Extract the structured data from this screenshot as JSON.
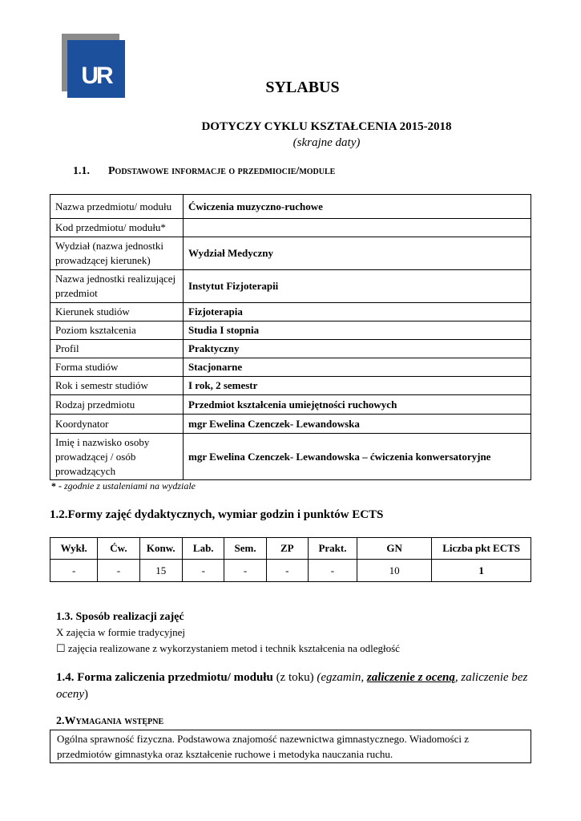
{
  "logo": {
    "text": "UR",
    "colors": {
      "blue": "#1c4f9c",
      "gray": "#8a8a8a"
    }
  },
  "title": "SYLABUS",
  "cycle": "DOTYCZY CYKLU KSZTAŁCENIA 2015-2018",
  "cycle_note": "(skrajne daty)",
  "section_1_1": {
    "num": "1.1.",
    "title": "Podstawowe informacje o przedmiocie/module"
  },
  "info_rows": [
    {
      "label": "Nazwa przedmiotu/ modułu",
      "value": "Ćwiczenia muzyczno-ruchowe"
    },
    {
      "label": "Kod przedmiotu/ modułu*",
      "value": ""
    },
    {
      "label": "Wydział (nazwa jednostki prowadzącej kierunek)",
      "value": "Wydział Medyczny"
    },
    {
      "label": "Nazwa jednostki realizującej przedmiot",
      "value": "Instytut Fizjoterapii"
    },
    {
      "label": "Kierunek studiów",
      "value": "Fizjoterapia"
    },
    {
      "label": "Poziom kształcenia",
      "value": "Studia I stopnia"
    },
    {
      "label": "Profil",
      "value": "Praktyczny"
    },
    {
      "label": "Forma studiów",
      "value": "Stacjonarne"
    },
    {
      "label": "Rok i semestr studiów",
      "value": "I rok, 2 semestr"
    },
    {
      "label": "Rodzaj przedmiotu",
      "value": "Przedmiot kształcenia umiejętności ruchowych"
    },
    {
      "label": "Koordynator",
      "value": "mgr Ewelina Czenczek- Lewandowska"
    },
    {
      "label": "Imię i nazwisko osoby prowadzącej / osób prowadzących",
      "value": "mgr Ewelina Czenczek- Lewandowska – ćwiczenia konwersatoryjne"
    }
  ],
  "footnote_star": "* -",
  "footnote": " zgodnie z ustaleniami na wydziale",
  "section_1_2": "1.2.Formy zajęć dydaktycznych, wymiar godzin i punktów ECTS",
  "forms": {
    "headers": [
      "Wykł.",
      "Ćw.",
      "Konw.",
      "Lab.",
      "Sem.",
      "ZP",
      "Prakt.",
      "GN",
      "Liczba pkt ECTS"
    ],
    "values": [
      "-",
      "-",
      "15",
      "-",
      "-",
      "-",
      "-",
      "10",
      "1"
    ]
  },
  "section_1_3": {
    "title": "1.3.  Sposób realizacji zajęć",
    "opt1_mark": "X",
    "opt1": " zajęcia w formie tradycyjnej",
    "opt2_mark": "☐",
    "opt2": " zajęcia realizowane z wykorzystaniem metod i technik kształcenia na odległość"
  },
  "section_1_4": {
    "title": "1.4. Forma zaliczenia przedmiotu/ modułu",
    "mode": " (z toku) ",
    "opt_a": "(egzamin, ",
    "opt_selected": "zaliczenie z oceną",
    "opt_b": ", zaliczenie bez oceny",
    ")": ")"
  },
  "section_2": {
    "title": "2.Wymagania wstępne",
    "text": "Ogólna sprawność fizyczna. Podstawowa znajomość nazewnictwa gimnastycznego. Wiadomości z przedmiotów gimnastyka oraz kształcenie ruchowe i metodyka nauczania ruchu."
  }
}
